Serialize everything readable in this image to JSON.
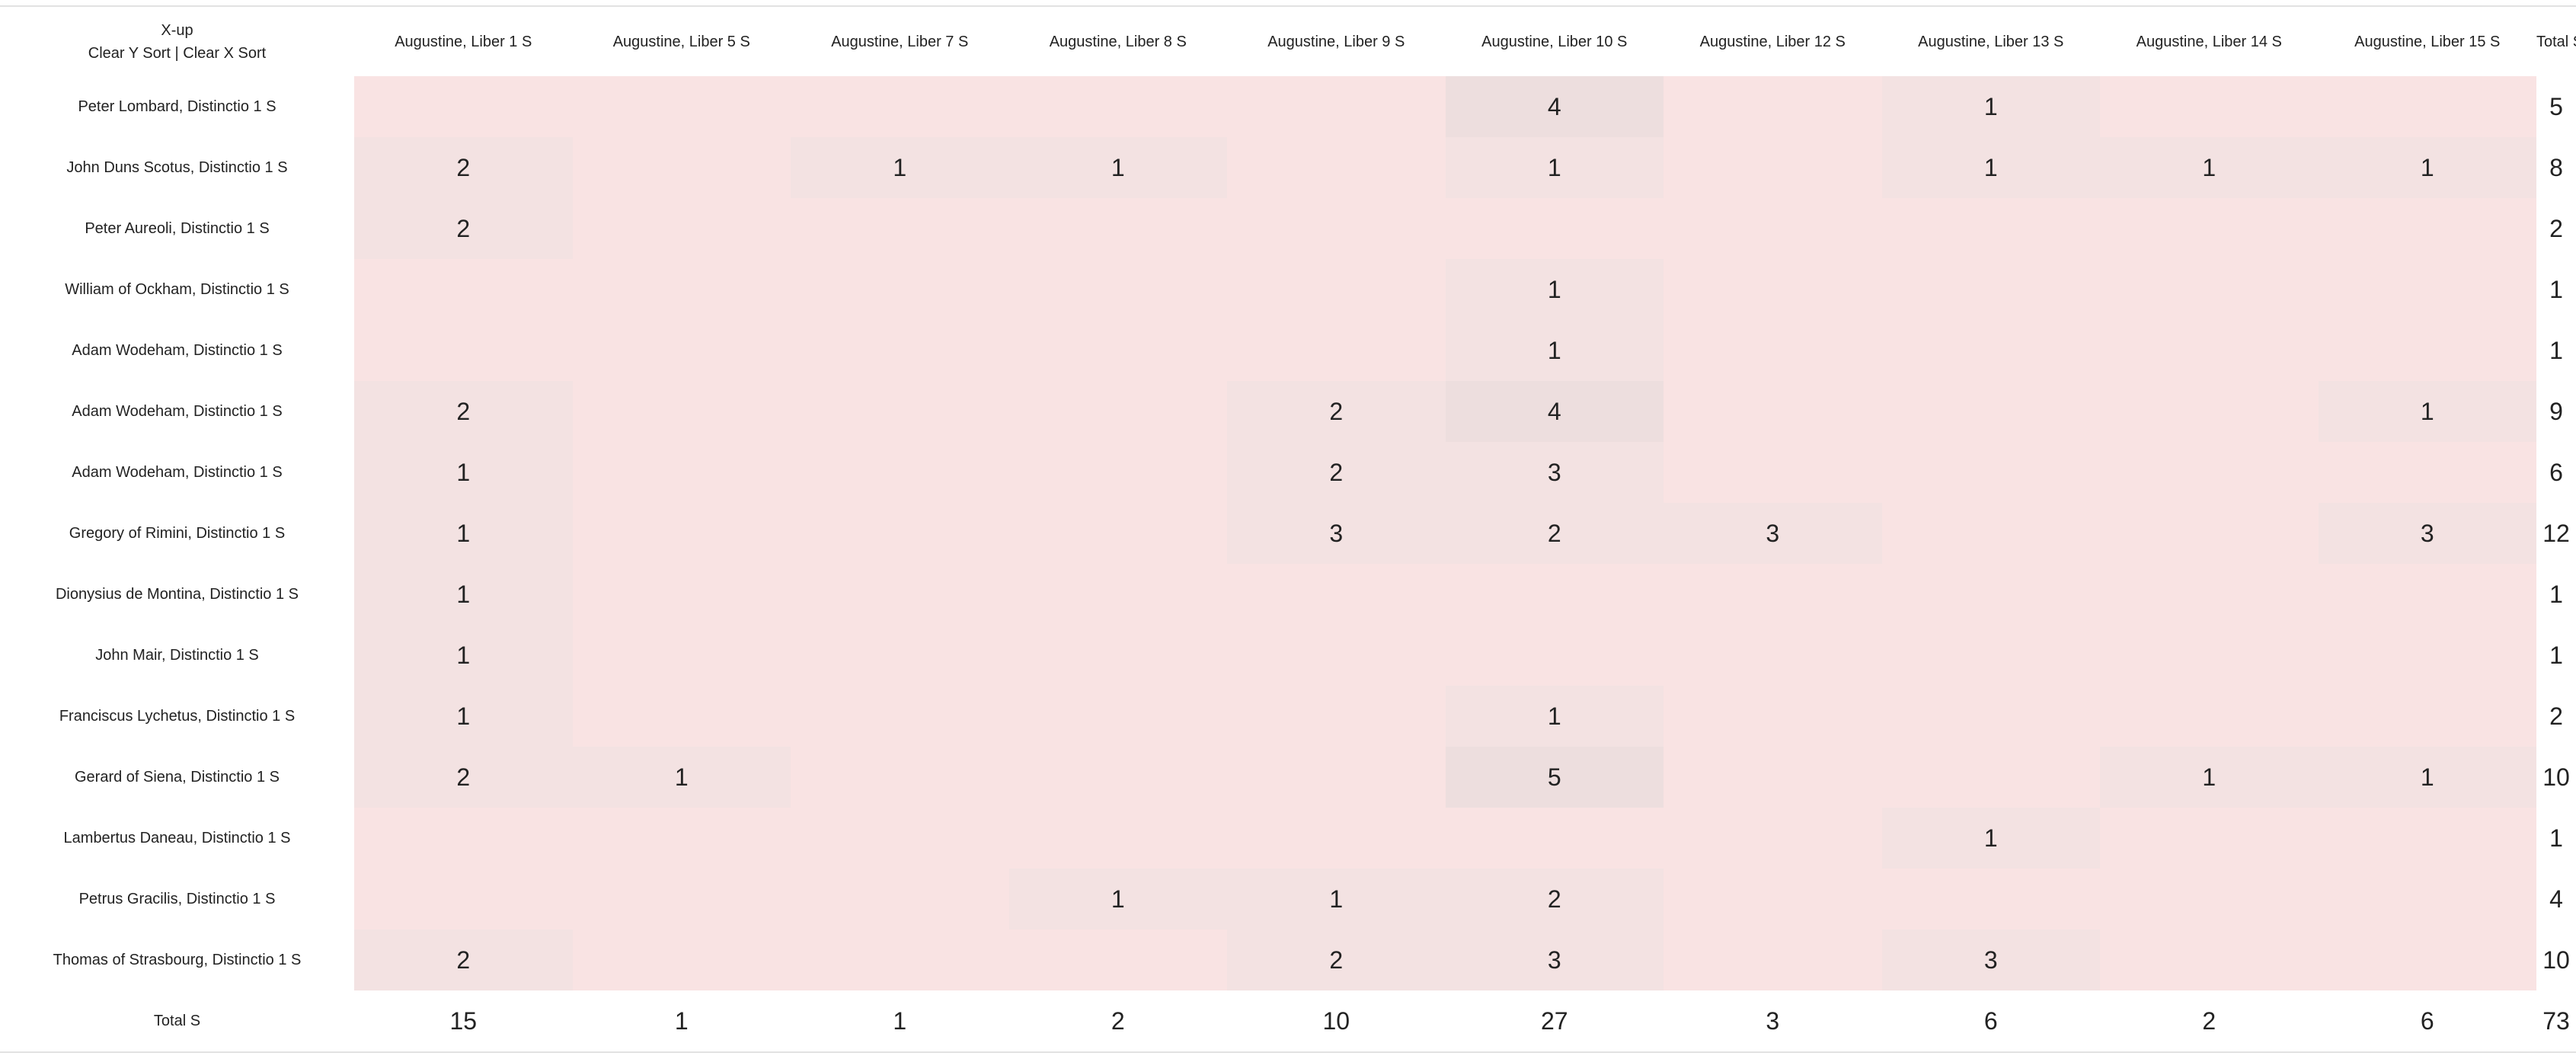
{
  "corner": {
    "xup_label": "X-up",
    "clear_y_sort": "Clear Y Sort",
    "separator": " | ",
    "clear_x_sort": "Clear X Sort"
  },
  "columns": [
    "Augustine, Liber 1 S",
    "Augustine, Liber 5 S",
    "Augustine, Liber 7 S",
    "Augustine, Liber 8 S",
    "Augustine, Liber 9 S",
    "Augustine, Liber 10 S",
    "Augustine, Liber 12 S",
    "Augustine, Liber 13 S",
    "Augustine, Liber 14 S",
    "Augustine, Liber 15 S"
  ],
  "total_column_label": "Total S",
  "rows": [
    {
      "label": "Peter Lombard, Distinctio 1 S",
      "values": [
        null,
        null,
        null,
        null,
        null,
        4,
        null,
        1,
        null,
        null
      ],
      "total": 5
    },
    {
      "label": "John Duns Scotus, Distinctio 1 S",
      "values": [
        2,
        null,
        1,
        1,
        null,
        1,
        null,
        1,
        1,
        1
      ],
      "total": 8
    },
    {
      "label": "Peter Aureoli, Distinctio 1 S",
      "values": [
        2,
        null,
        null,
        null,
        null,
        null,
        null,
        null,
        null,
        null
      ],
      "total": 2
    },
    {
      "label": "William of Ockham, Distinctio 1 S",
      "values": [
        null,
        null,
        null,
        null,
        null,
        1,
        null,
        null,
        null,
        null
      ],
      "total": 1
    },
    {
      "label": "Adam Wodeham, Distinctio 1 S",
      "values": [
        null,
        null,
        null,
        null,
        null,
        1,
        null,
        null,
        null,
        null
      ],
      "total": 1
    },
    {
      "label": "Adam Wodeham, Distinctio 1 S",
      "values": [
        2,
        null,
        null,
        null,
        2,
        4,
        null,
        null,
        null,
        1
      ],
      "total": 9
    },
    {
      "label": "Adam Wodeham, Distinctio 1 S",
      "values": [
        1,
        null,
        null,
        null,
        2,
        3,
        null,
        null,
        null,
        null
      ],
      "total": 6
    },
    {
      "label": "Gregory of Rimini, Distinctio 1 S",
      "values": [
        1,
        null,
        null,
        null,
        3,
        2,
        3,
        null,
        null,
        3
      ],
      "total": 12
    },
    {
      "label": "Dionysius de Montina, Distinctio 1 S",
      "values": [
        1,
        null,
        null,
        null,
        null,
        null,
        null,
        null,
        null,
        null
      ],
      "total": 1
    },
    {
      "label": "John Mair, Distinctio 1 S",
      "values": [
        1,
        null,
        null,
        null,
        null,
        null,
        null,
        null,
        null,
        null
      ],
      "total": 1
    },
    {
      "label": "Franciscus Lychetus, Distinctio 1 S",
      "values": [
        1,
        null,
        null,
        null,
        null,
        1,
        null,
        null,
        null,
        null
      ],
      "total": 2
    },
    {
      "label": "Gerard of Siena, Distinctio 1 S",
      "values": [
        2,
        1,
        null,
        null,
        null,
        5,
        null,
        null,
        1,
        1
      ],
      "total": 10
    },
    {
      "label": "Lambertus Daneau, Distinctio 1 S",
      "values": [
        null,
        null,
        null,
        null,
        null,
        null,
        null,
        1,
        null,
        null
      ],
      "total": 1
    },
    {
      "label": "Petrus Gracilis, Distinctio 1 S",
      "values": [
        null,
        null,
        null,
        1,
        1,
        2,
        null,
        null,
        null,
        null
      ],
      "total": 4
    },
    {
      "label": "Thomas of Strasbourg, Distinctio 1 S",
      "values": [
        2,
        null,
        null,
        null,
        2,
        3,
        null,
        3,
        null,
        null
      ],
      "total": 10
    }
  ],
  "total_row": {
    "label": "Total S",
    "values": [
      15,
      1,
      1,
      2,
      10,
      27,
      3,
      6,
      2,
      6
    ],
    "grand_total": 73
  },
  "colors": {
    "empty_cell": "#f9e3e3",
    "light_cell": "#f3e2e2",
    "medium_cell": "#eddede",
    "text": "#222222",
    "rule": "#e2e2e2"
  }
}
